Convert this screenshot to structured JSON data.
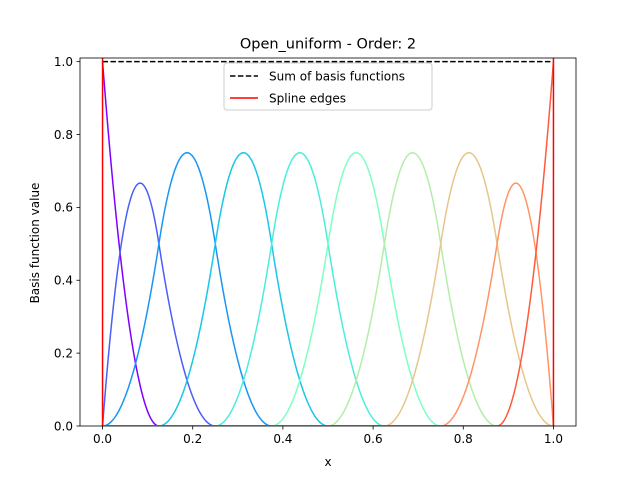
{
  "chart_data": {
    "type": "line",
    "title": "Open_uniform - Order: 2",
    "xlabel": "x",
    "ylabel": "Basis function value",
    "xlim": [
      -0.05,
      1.05
    ],
    "ylim": [
      0.0,
      1.01
    ],
    "xticks": [
      0.0,
      0.2,
      0.4,
      0.6,
      0.8,
      1.0
    ],
    "xtick_labels": [
      "0.0",
      "0.2",
      "0.4",
      "0.6",
      "0.8",
      "1.0"
    ],
    "yticks": [
      0.0,
      0.2,
      0.4,
      0.6,
      0.8,
      1.0
    ],
    "ytick_labels": [
      "0.0",
      "0.2",
      "0.4",
      "0.6",
      "0.8",
      "1.0"
    ],
    "grid": false,
    "legend_position": "top-center",
    "knots": [
      0,
      0,
      0,
      0.125,
      0.25,
      0.375,
      0.5,
      0.625,
      0.75,
      0.875,
      1,
      1,
      1
    ],
    "degree": 2,
    "basis_colors": [
      "#8000ff",
      "#4a5ef9",
      "#1996f3",
      "#1ac7e7",
      "#4ceed9",
      "#80ffc2",
      "#b3eea9",
      "#e6c68a",
      "#ff9566",
      "#ff5a3b",
      "#ff0000"
    ],
    "legend": [
      {
        "label": "Sum of basis functions",
        "style": "dashed",
        "color": "#000000"
      },
      {
        "label": "Spline edges",
        "style": "solid",
        "color": "#ff0000"
      }
    ],
    "sum_value": 1.0,
    "spline_edges": [
      0.0,
      1.0
    ]
  }
}
